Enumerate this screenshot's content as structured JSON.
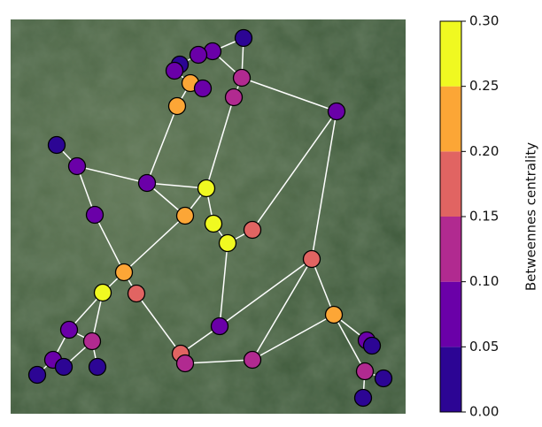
{
  "network": {
    "nodes": [
      {
        "centrality": 0.02
      },
      {
        "centrality": 0.07
      },
      {
        "centrality": 0.07
      },
      {
        "centrality": 0.03
      },
      {
        "centrality": 0.06
      },
      {
        "centrality": 0.12
      },
      {
        "centrality": 0.22
      },
      {
        "centrality": 0.06
      },
      {
        "centrality": 0.11
      },
      {
        "centrality": 0.23
      },
      {
        "centrality": 0.06
      },
      {
        "centrality": 0.03
      },
      {
        "centrality": 0.08
      },
      {
        "centrality": 0.09
      },
      {
        "centrality": 0.29
      },
      {
        "centrality": 0.08
      },
      {
        "centrality": 0.22
      },
      {
        "centrality": 0.26
      },
      {
        "centrality": 0.26
      },
      {
        "centrality": 0.17
      },
      {
        "centrality": 0.16
      },
      {
        "centrality": 0.22
      },
      {
        "centrality": 0.26
      },
      {
        "centrality": 0.16
      },
      {
        "centrality": 0.09
      },
      {
        "centrality": 0.09
      },
      {
        "centrality": 0.11
      },
      {
        "centrality": 0.21
      },
      {
        "centrality": 0.07
      },
      {
        "centrality": 0.03
      },
      {
        "centrality": 0.17
      },
      {
        "centrality": 0.12
      },
      {
        "centrality": 0.11
      },
      {
        "centrality": 0.07
      },
      {
        "centrality": 0.03
      },
      {
        "centrality": 0.03
      },
      {
        "centrality": 0.03
      },
      {
        "centrality": 0.12
      },
      {
        "centrality": 0.03
      },
      {
        "centrality": 0.03
      }
    ],
    "edges": [
      [
        0,
        5
      ],
      [
        0,
        1
      ],
      [
        1,
        2
      ],
      [
        2,
        3
      ],
      [
        3,
        4
      ],
      [
        4,
        6
      ],
      [
        6,
        7
      ],
      [
        1,
        5
      ],
      [
        5,
        8
      ],
      [
        6,
        9
      ],
      [
        9,
        13
      ],
      [
        8,
        14
      ],
      [
        10,
        5
      ],
      [
        10,
        19
      ],
      [
        10,
        20
      ],
      [
        11,
        12
      ],
      [
        12,
        13
      ],
      [
        12,
        15
      ],
      [
        13,
        14
      ],
      [
        13,
        16
      ],
      [
        14,
        17
      ],
      [
        16,
        21
      ],
      [
        17,
        18
      ],
      [
        18,
        24
      ],
      [
        19,
        18
      ],
      [
        15,
        21
      ],
      [
        21,
        22
      ],
      [
        21,
        23
      ],
      [
        22,
        25
      ],
      [
        22,
        26
      ],
      [
        23,
        30
      ],
      [
        24,
        20
      ],
      [
        24,
        30
      ],
      [
        20,
        32
      ],
      [
        20,
        27
      ],
      [
        27,
        32
      ],
      [
        27,
        28
      ],
      [
        27,
        37
      ],
      [
        28,
        29
      ],
      [
        37,
        38
      ],
      [
        37,
        39
      ],
      [
        30,
        31
      ],
      [
        31,
        32
      ],
      [
        25,
        33
      ],
      [
        26,
        35
      ],
      [
        26,
        34
      ],
      [
        33,
        36
      ],
      [
        33,
        34
      ],
      [
        25,
        26
      ],
      [
        16,
        14
      ]
    ]
  },
  "colorbar": {
    "label": "Betweennes centrality",
    "lim": [
      0,
      0.3
    ],
    "colors": [
      "#2c0594",
      "#6a00a8",
      "#b12a90",
      "#e16462",
      "#fca636",
      "#f0f921"
    ],
    "ticks": [
      {
        "value": 0,
        "label": "0.00"
      },
      0.05,
      {
        "value": 0.1,
        "label": "0.10"
      },
      0.15,
      {
        "value": 0.2,
        "label": "0.20"
      },
      0.25,
      {
        "value": 0.3,
        "label": "0.30"
      }
    ]
  }
}
